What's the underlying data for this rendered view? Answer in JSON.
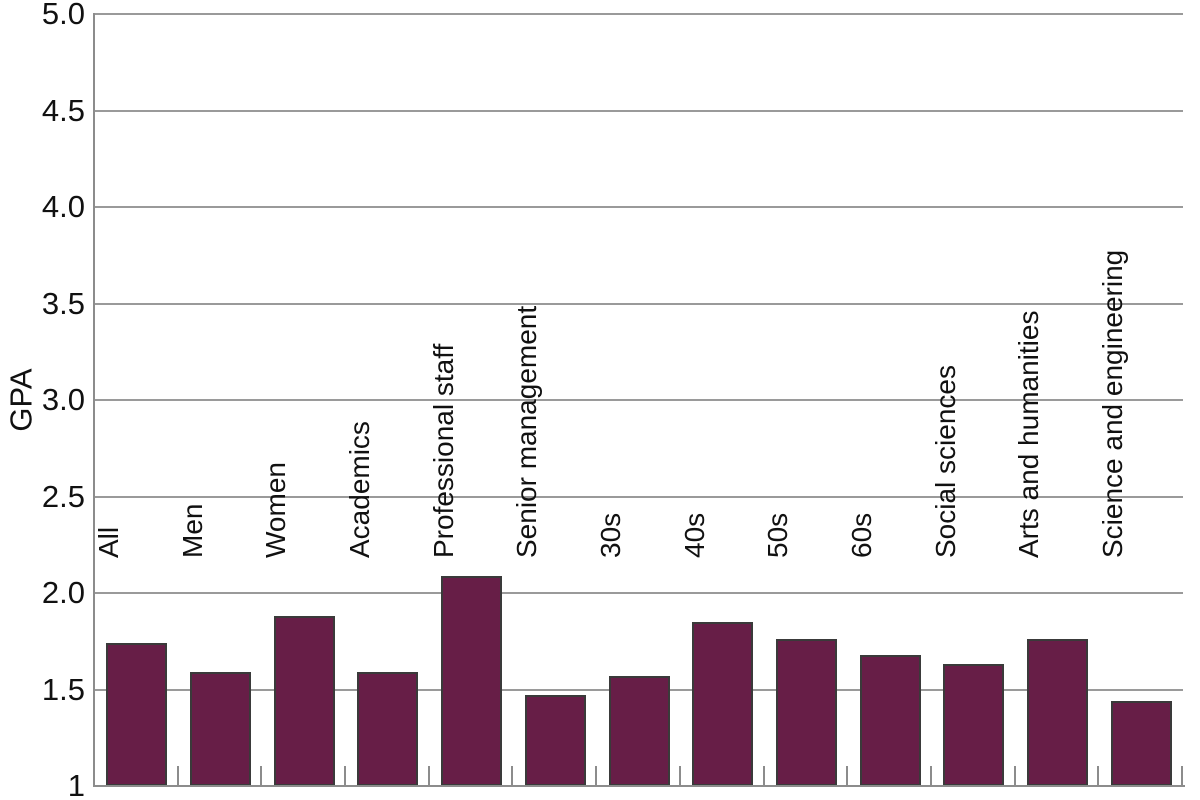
{
  "chart_data": {
    "type": "bar",
    "title": "",
    "xlabel": "",
    "ylabel": "GPA",
    "ylim": [
      1,
      5
    ],
    "grid": "horizontal",
    "legend_position": "none",
    "ytick_labels": [
      "5.0",
      "4.5",
      "4.0",
      "3.5",
      "3.0",
      "2.5",
      "2.0",
      "1.5",
      "1"
    ],
    "ytick_values": [
      5.0,
      4.5,
      4.0,
      3.5,
      3.0,
      2.5,
      2.0,
      1.5,
      1.0
    ],
    "categories": [
      "All",
      "Men",
      "Women",
      "Academics",
      "Professional staff",
      "Senior management",
      "30s",
      "40s",
      "50s",
      "60s",
      "Social sciences",
      "Arts and humanities",
      "Science and engineering"
    ],
    "values": [
      1.74,
      1.59,
      1.88,
      1.59,
      2.09,
      1.47,
      1.57,
      1.85,
      1.76,
      1.68,
      1.63,
      1.76,
      1.44
    ],
    "colors": {
      "bar_fill": "#671e47",
      "bar_border": "#3a3a3a",
      "gridline": "#9a9a9a",
      "axis": "#8c8c8c",
      "text": "#111111"
    }
  }
}
